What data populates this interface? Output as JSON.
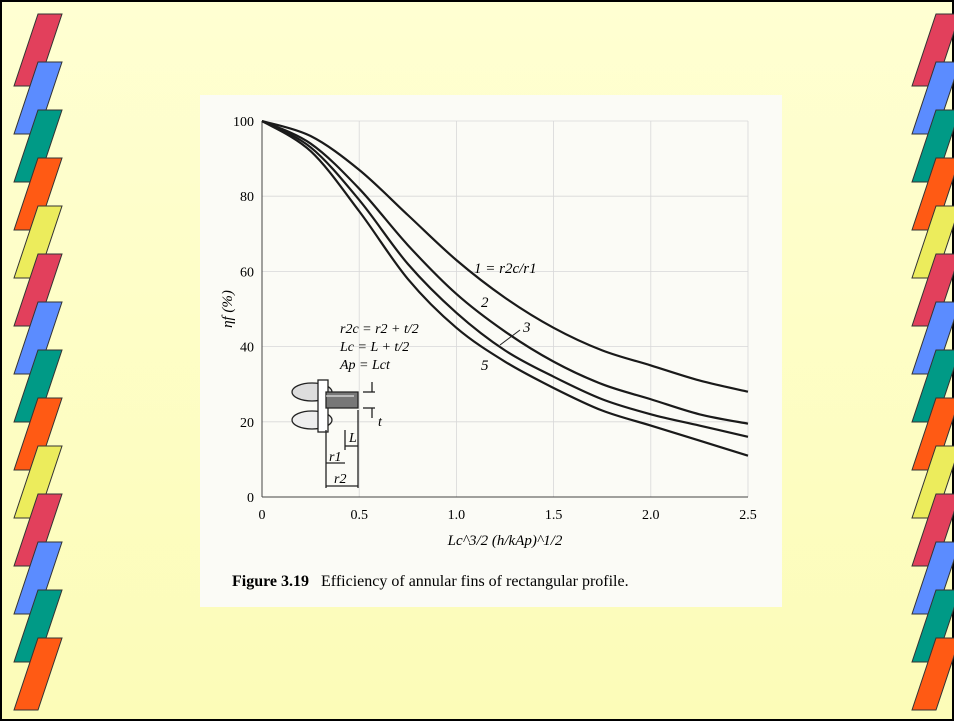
{
  "chart_data": {
    "type": "line",
    "y_label": "ηf (%)",
    "x_label": "Lc^3/2 (h/kAp)^1/2",
    "caption_number": "Figure 3.19",
    "caption_text": "Efficiency of annular fins of rectangular profile.",
    "x": [
      0,
      0.25,
      0.5,
      0.75,
      1.0,
      1.25,
      1.5,
      1.75,
      2.0,
      2.25,
      2.5
    ],
    "series": [
      {
        "name": "1 = r2c/r1",
        "color": "#1a1a1a",
        "values": [
          100,
          96,
          87,
          75,
          63,
          53,
          45,
          39,
          35,
          31,
          28
        ]
      },
      {
        "name": "2",
        "color": "#1a1a1a",
        "values": [
          100,
          94,
          82,
          67,
          54,
          44,
          36,
          30,
          26,
          22,
          19.5
        ]
      },
      {
        "name": "3",
        "color": "#1a1a1a",
        "values": [
          100,
          93,
          79,
          62,
          49,
          39,
          32,
          26,
          22,
          19,
          16
        ]
      },
      {
        "name": "5",
        "color": "#1a1a1a",
        "values": [
          100,
          92,
          76,
          58,
          45,
          36,
          29,
          23,
          19,
          15,
          11
        ]
      }
    ],
    "xlim": [
      0,
      2.5
    ],
    "ylim": [
      0,
      100
    ],
    "xticks": [
      0,
      0.5,
      {
        "value": 1,
        "label": "1.0"
      },
      1.5,
      {
        "value": 2,
        "label": "2.0"
      },
      2.5
    ],
    "yticks": [
      0,
      20,
      40,
      60,
      80,
      100
    ],
    "grid": true,
    "inset_labels": [
      "r2c = r2 + t/2",
      "Lc = L + t/2",
      "Ap = Lct",
      "t",
      "L",
      "r1",
      "r2"
    ]
  }
}
